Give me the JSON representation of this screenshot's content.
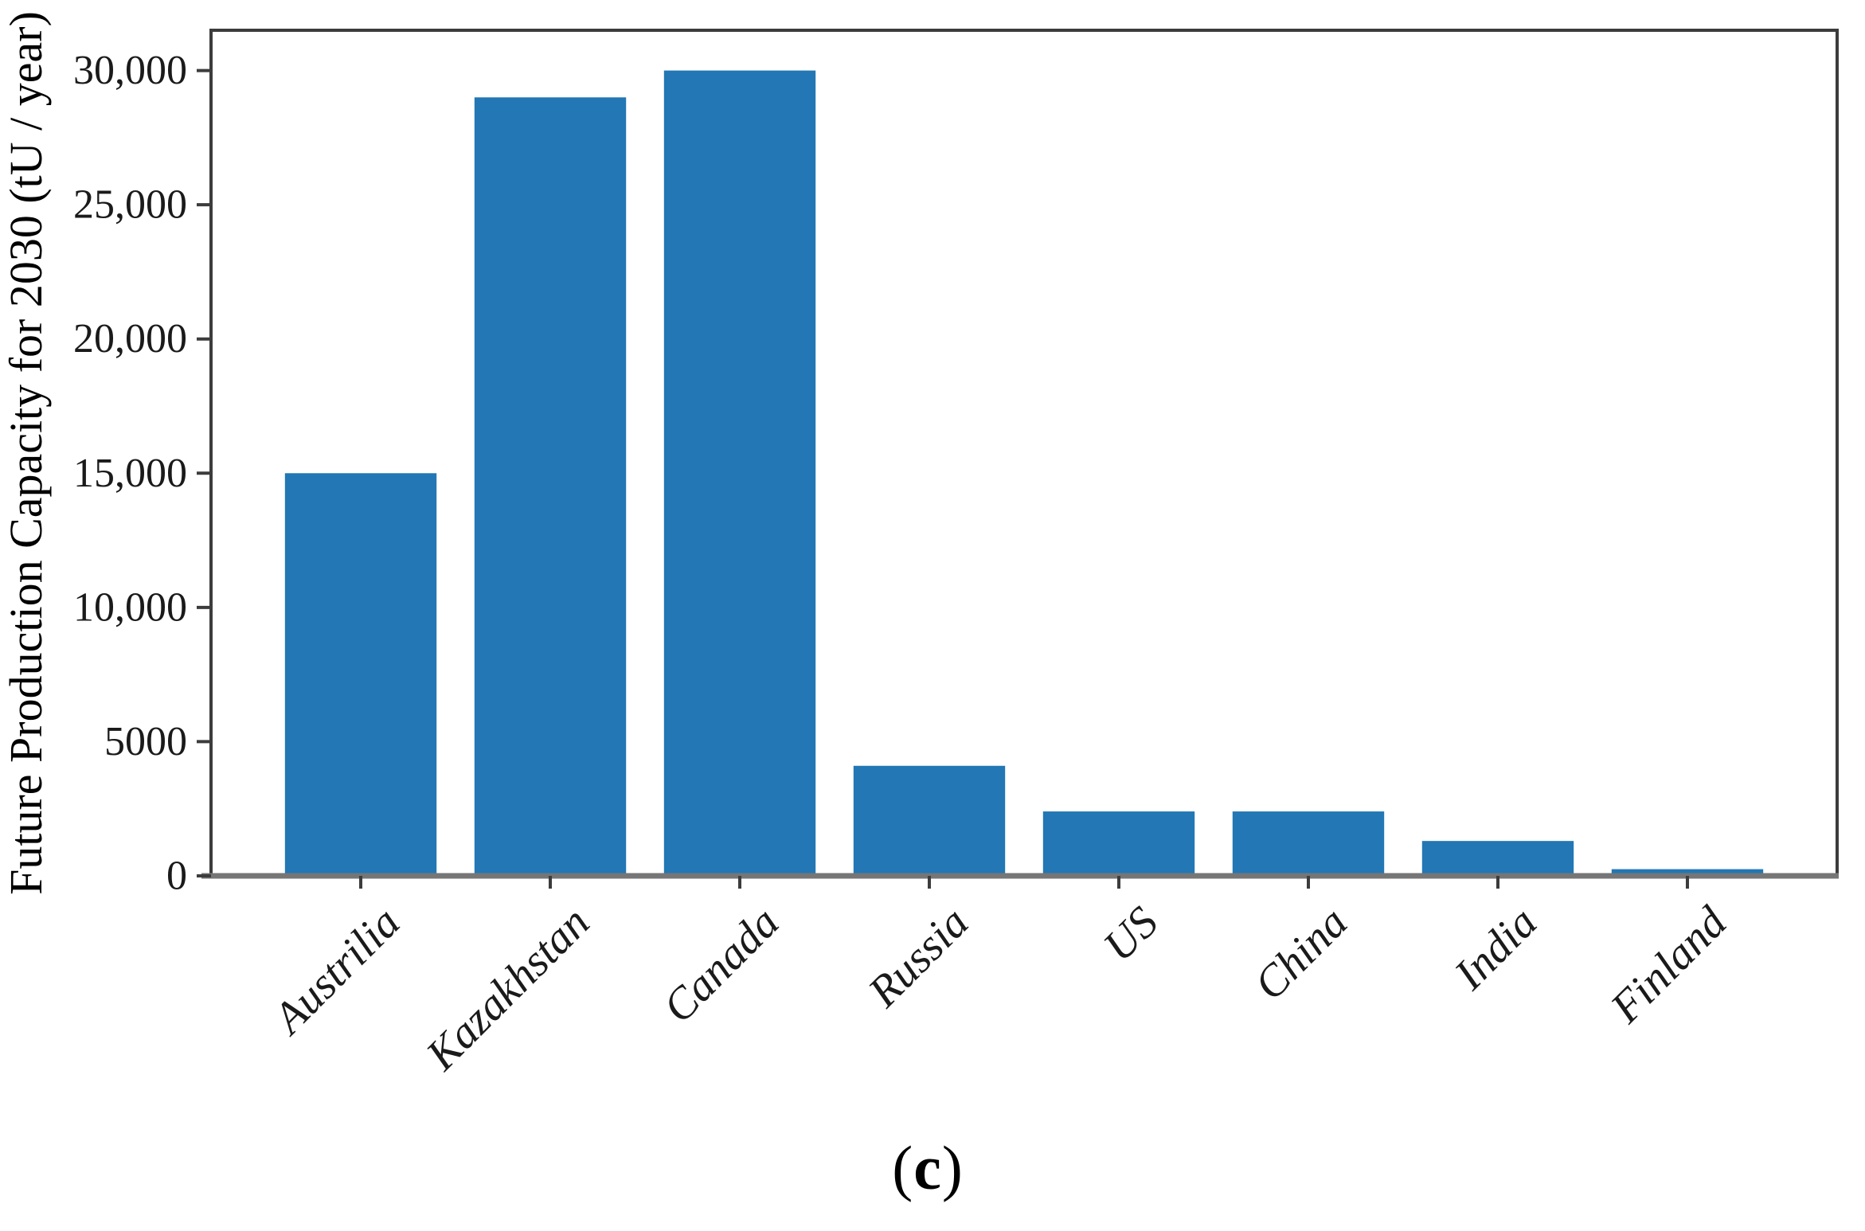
{
  "figure": {
    "caption": {
      "open": "(",
      "letter": "c",
      "close": ")"
    }
  },
  "chart_data": {
    "type": "bar",
    "title": "",
    "categories": [
      "Austrilia",
      "Kazakhstan",
      "Canada",
      "Russia",
      "US",
      "China",
      "India",
      "Finland"
    ],
    "values": [
      15000,
      29000,
      30000,
      4100,
      2400,
      2400,
      1300,
      250
    ],
    "series": [
      {
        "name": "Future Production Capacity for 2030",
        "values": [
          15000,
          29000,
          30000,
          4100,
          2400,
          2400,
          1300,
          250
        ]
      }
    ],
    "xlabel": "",
    "ylabel": "Future Production Capacity for 2030 (tU / year)",
    "ylim": [
      0,
      31500
    ],
    "yticks": [
      {
        "value": 0,
        "label": "0"
      },
      {
        "value": 5000,
        "label": "5000"
      },
      {
        "value": 10000,
        "label": "10,000"
      },
      {
        "value": 15000,
        "label": "15,000"
      },
      {
        "value": 20000,
        "label": "20,000"
      },
      {
        "value": 25000,
        "label": "25,000"
      },
      {
        "value": 30000,
        "label": "30,000"
      }
    ],
    "grid": false,
    "legend_position": "none",
    "bar_color": "#2277b4",
    "spine_color": "#3c3c3c",
    "baseline_color": "#767676",
    "text_color": "#1a1a1a",
    "bar_width_fraction": 0.8,
    "x_tick_label_style": "italic",
    "x_tick_label_rotation_deg": 45
  }
}
